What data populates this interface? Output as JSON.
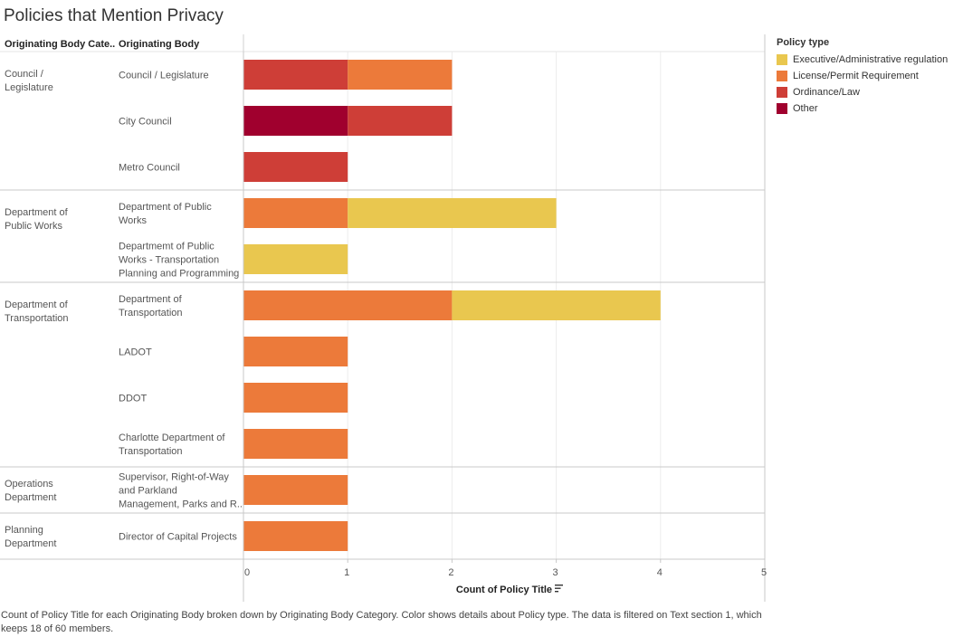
{
  "title": "Policies that Mention Privacy",
  "headers": {
    "category": "Originating Body Cate..",
    "body": "Originating Body"
  },
  "legend": {
    "title": "Policy type",
    "items": [
      {
        "label": "Executive/Administrative regulation",
        "color": "#E9C74F"
      },
      {
        "label": "License/Permit Requirement",
        "color": "#EC7A3A"
      },
      {
        "label": "Ordinance/Law",
        "color": "#CE3E37"
      },
      {
        "label": "Other",
        "color": "#A0002E"
      }
    ]
  },
  "caption": "Count of Policy Title for each Originating Body broken down by Originating Body Category.  Color shows details about Policy type. The data is filtered on Text section 1, which keeps 18 of 60 members.",
  "chart_data": {
    "type": "bar",
    "orientation": "horizontal",
    "stacked": true,
    "xlabel": "Count of Policy Title",
    "xlim": [
      0,
      5
    ],
    "xticks": [
      0,
      1,
      2,
      3,
      4,
      5
    ],
    "grid": true,
    "legend_position": "right",
    "groups": [
      {
        "category": "Council / Legislature",
        "rows": [
          {
            "body": [
              "Council / Legislature"
            ],
            "segments": [
              {
                "type": "Ordinance/Law",
                "value": 1
              },
              {
                "type": "License/Permit Requirement",
                "value": 1
              }
            ]
          },
          {
            "body": [
              "City Council"
            ],
            "segments": [
              {
                "type": "Other",
                "value": 1
              },
              {
                "type": "Ordinance/Law",
                "value": 1
              }
            ]
          },
          {
            "body": [
              "Metro Council"
            ],
            "segments": [
              {
                "type": "Ordinance/Law",
                "value": 1
              }
            ]
          }
        ]
      },
      {
        "category": "Department of Public Works",
        "rows": [
          {
            "body": [
              "Department of Public",
              "Works"
            ],
            "segments": [
              {
                "type": "License/Permit Requirement",
                "value": 1
              },
              {
                "type": "Executive/Administrative regulation",
                "value": 2
              }
            ]
          },
          {
            "body": [
              "Departmemt of Public",
              "Works - Transportation",
              "Planning and Programming"
            ],
            "segments": [
              {
                "type": "Executive/Administrative regulation",
                "value": 1
              }
            ]
          }
        ]
      },
      {
        "category": "Department of Transportation",
        "rows": [
          {
            "body": [
              "Department of",
              "Transportation"
            ],
            "segments": [
              {
                "type": "License/Permit Requirement",
                "value": 2
              },
              {
                "type": "Executive/Administrative regulation",
                "value": 2
              }
            ]
          },
          {
            "body": [
              "LADOT"
            ],
            "segments": [
              {
                "type": "License/Permit Requirement",
                "value": 1
              }
            ]
          },
          {
            "body": [
              "DDOT"
            ],
            "segments": [
              {
                "type": "License/Permit Requirement",
                "value": 1
              }
            ]
          },
          {
            "body": [
              "Charlotte Department of",
              "Transportation"
            ],
            "segments": [
              {
                "type": "License/Permit Requirement",
                "value": 1
              }
            ]
          }
        ]
      },
      {
        "category": "Operations Department",
        "rows": [
          {
            "body": [
              "Supervisor, Right-of-Way",
              "and Parkland",
              "Management, Parks and R.."
            ],
            "segments": [
              {
                "type": "License/Permit Requirement",
                "value": 1
              }
            ]
          }
        ]
      },
      {
        "category": "Planning Department",
        "rows": [
          {
            "body": [
              "Director of Capital Projects"
            ],
            "segments": [
              {
                "type": "License/Permit Requirement",
                "value": 1
              }
            ]
          }
        ]
      }
    ]
  }
}
